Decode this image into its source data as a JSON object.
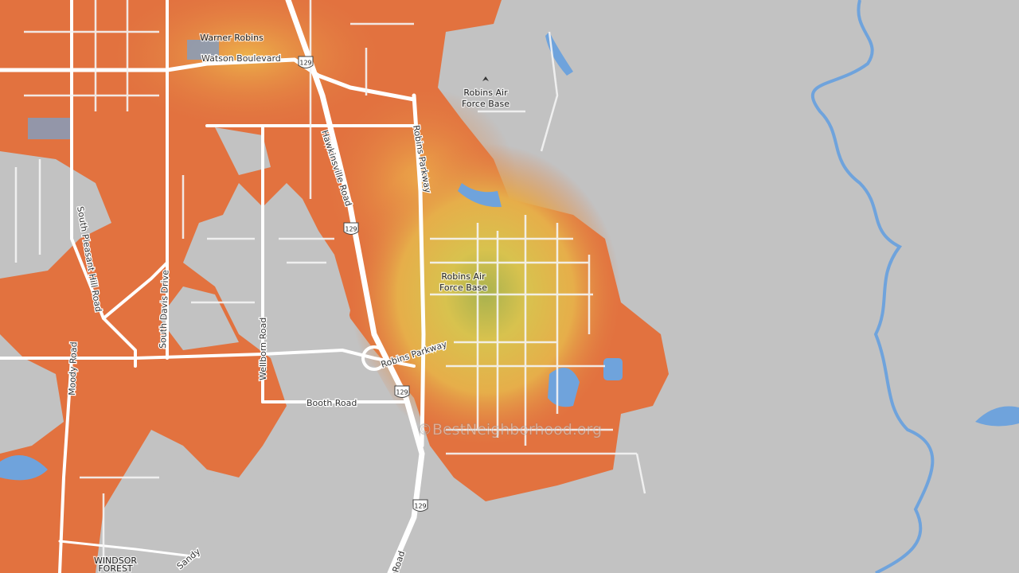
{
  "map": {
    "labels": {
      "city": "Warner Robins",
      "airbase_north": [
        "Robins Air",
        "Force Base"
      ],
      "airbase_center": [
        "Robins Air",
        "Force Base"
      ],
      "windsor_forest": [
        "WINDSOR",
        "FOREST"
      ],
      "watson": "Watson Boulevard",
      "hawkinsville": "Hawkinsville Road",
      "robins_parkway_north": "Robins Parkway",
      "robins_parkway_south": "Robins Parkway",
      "south_pleasant_hill": "South Pleasant Hill Road",
      "south_davis": "South Davis Drive",
      "wellborn": "Wellborn Road",
      "moody": "Moody Road",
      "booth": "Booth Road",
      "sandy": "Sandy",
      "road_bottom": "Road"
    },
    "shields": [
      "129",
      "129",
      "129",
      "129"
    ],
    "watermark": "©BestNeighborhood.org"
  }
}
